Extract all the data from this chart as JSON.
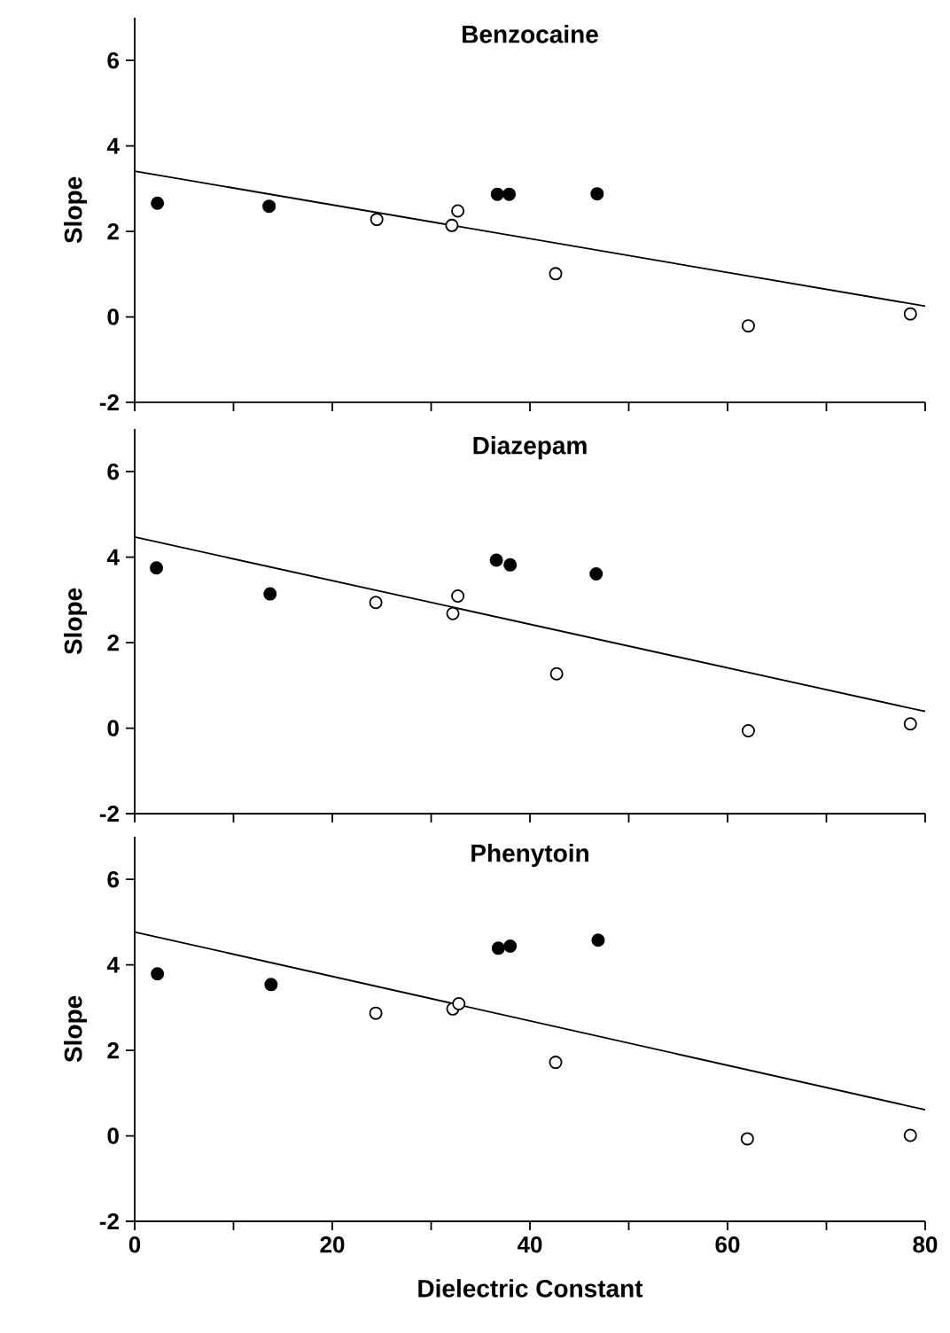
{
  "chart_data": [
    {
      "type": "scatter",
      "title": "Benzocaine",
      "ylabel": "Slope",
      "xlim": [
        0,
        80
      ],
      "ylim": [
        -2,
        7
      ],
      "xticks": [
        0,
        {
          "value": 10,
          "label": null
        },
        20,
        {
          "value": 30,
          "label": null
        },
        40,
        {
          "value": 50,
          "label": null
        },
        60,
        {
          "value": 70,
          "label": null
        },
        80
      ],
      "yticks": [
        -2,
        0,
        2,
        4,
        6
      ],
      "tick_labels": "y",
      "series": [
        {
          "marker": "circle",
          "color": "#000000",
          "x": [
            2.3,
            13.6,
            36.7,
            37.9,
            46.8
          ],
          "values": [
            2.66,
            2.59,
            2.87,
            2.87,
            2.88
          ]
        },
        {
          "marker": "circle",
          "color": "#ffffff",
          "x": [
            24.5,
            32.1,
            32.7,
            42.6,
            62.1,
            78.5
          ],
          "values": [
            2.28,
            2.14,
            2.48,
            1.01,
            -0.21,
            0.07
          ]
        },
        {
          "type": "line",
          "marker": "none",
          "color": "#000000",
          "x": [
            0,
            80
          ],
          "values": [
            3.41,
            0.25
          ]
        }
      ]
    },
    {
      "type": "scatter",
      "title": "Diazepam",
      "ylabel": "Slope",
      "xlim": [
        0,
        80
      ],
      "ylim": [
        -2,
        7
      ],
      "xticks": [
        0,
        {
          "value": 10,
          "label": null
        },
        20,
        {
          "value": 30,
          "label": null
        },
        40,
        {
          "value": 50,
          "label": null
        },
        60,
        {
          "value": 70,
          "label": null
        },
        80
      ],
      "yticks": [
        -2,
        0,
        2,
        4,
        6
      ],
      "tick_labels": "y",
      "series": [
        {
          "marker": "circle",
          "color": "#000000",
          "x": [
            2.2,
            13.7,
            36.6,
            38.0,
            46.7
          ],
          "values": [
            3.75,
            3.14,
            3.93,
            3.82,
            3.61
          ]
        },
        {
          "marker": "circle",
          "color": "#ffffff",
          "x": [
            24.4,
            32.2,
            32.7,
            42.7,
            62.1,
            78.5
          ],
          "values": [
            2.94,
            2.68,
            3.09,
            1.27,
            -0.06,
            0.1
          ]
        },
        {
          "type": "line",
          "marker": "none",
          "color": "#000000",
          "x": [
            0,
            80
          ],
          "values": [
            4.47,
            0.39
          ]
        }
      ]
    },
    {
      "type": "scatter",
      "title": "Phenytoin",
      "xlabel": "Dielectric Constant",
      "ylabel": "Slope",
      "xlim": [
        0,
        80
      ],
      "ylim": [
        -2,
        7
      ],
      "xticks": [
        0,
        {
          "value": 10,
          "label": null
        },
        20,
        {
          "value": 30,
          "label": null
        },
        40,
        {
          "value": 50,
          "label": null
        },
        60,
        {
          "value": 70,
          "label": null
        },
        80
      ],
      "yticks": [
        -2,
        0,
        2,
        4,
        6
      ],
      "series": [
        {
          "marker": "circle",
          "color": "#000000",
          "x": [
            2.3,
            13.8,
            36.8,
            38.0,
            46.9
          ],
          "values": [
            3.79,
            3.54,
            4.39,
            4.44,
            4.58
          ]
        },
        {
          "marker": "circle",
          "color": "#ffffff",
          "x": [
            24.4,
            32.2,
            32.8,
            42.6,
            62.0,
            78.5
          ],
          "values": [
            2.87,
            2.97,
            3.09,
            1.72,
            -0.07,
            0.01
          ]
        },
        {
          "type": "line",
          "marker": "none",
          "color": "#000000",
          "x": [
            0,
            80
          ],
          "values": [
            4.77,
            0.61
          ]
        }
      ]
    }
  ]
}
